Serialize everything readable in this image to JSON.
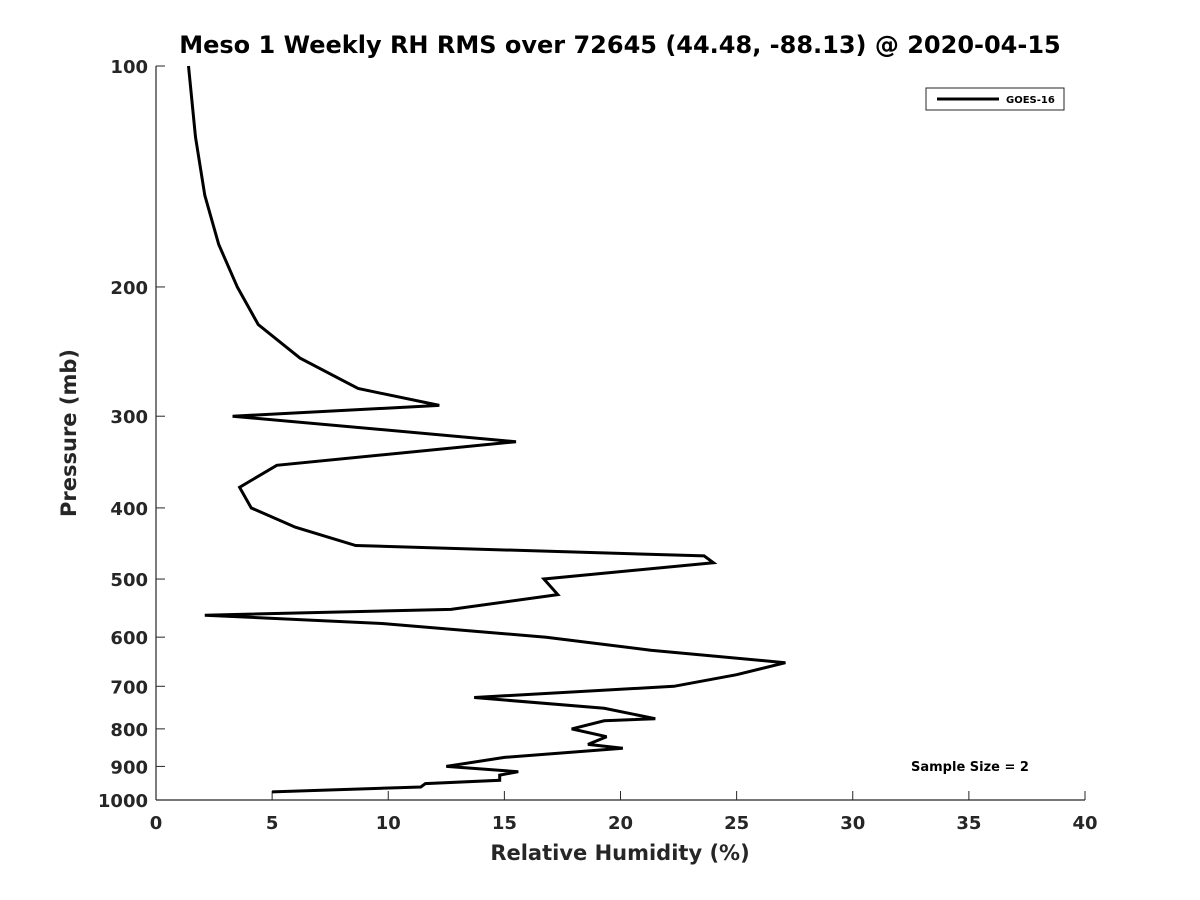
{
  "chart_data": {
    "type": "line",
    "title": "Meso 1 Weekly RH RMS over 72645 (44.48, -88.13) @ 2020-04-15",
    "xlabel": "Relative Humidity (%)",
    "ylabel": "Pressure (mb)",
    "xlim": [
      0,
      40
    ],
    "ylim": [
      100,
      1000
    ],
    "yscale": "log",
    "reverse_y": true,
    "xticks": [
      0,
      5,
      10,
      15,
      20,
      25,
      30,
      35,
      40
    ],
    "xtick_labels": [
      "0",
      "5",
      "10",
      "15",
      "20",
      "25",
      "30",
      "35",
      "40"
    ],
    "yticks": [
      100,
      200,
      300,
      400,
      500,
      600,
      700,
      800,
      900,
      1000
    ],
    "ytick_labels": [
      "100",
      "200",
      "300",
      "400",
      "500",
      "600",
      "700",
      "800",
      "900",
      "1000"
    ],
    "legend_position": "top-right",
    "annotation": "Sample Size = 2",
    "series": [
      {
        "name": "GOES-16",
        "color": "#000000",
        "x": [
          1.4,
          1.7,
          2.1,
          2.7,
          3.5,
          4.4,
          6.2,
          8.7,
          12.2,
          3.3,
          15.5,
          5.2,
          3.6,
          4.1,
          6.0,
          8.6,
          23.6,
          24.0,
          16.7,
          17.3,
          12.7,
          2.1,
          9.8,
          16.8,
          21.3,
          27.1,
          25.0,
          22.3,
          13.7,
          19.3,
          21.5,
          19.3,
          17.9,
          19.4,
          18.6,
          20.1,
          15.0,
          12.5,
          15.6,
          14.8,
          14.8,
          11.6,
          11.4,
          5.0
        ],
        "y": [
          100,
          125,
          150,
          175,
          200,
          225,
          250,
          275,
          290,
          300,
          325,
          350,
          375,
          400,
          425,
          450,
          465,
          475,
          500,
          525,
          550,
          560,
          575,
          600,
          625,
          650,
          675,
          700,
          725,
          750,
          775,
          780,
          800,
          820,
          840,
          850,
          875,
          900,
          915,
          925,
          940,
          950,
          960,
          975
        ]
      }
    ]
  }
}
